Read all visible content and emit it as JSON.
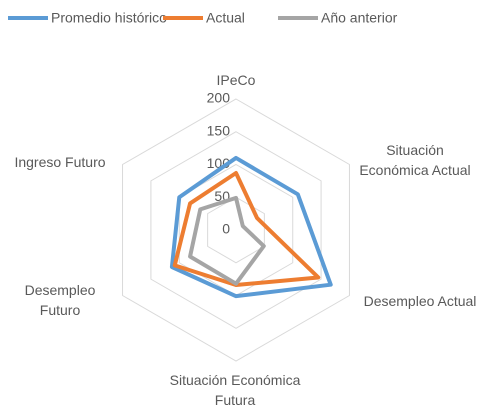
{
  "chart_data": {
    "type": "radar",
    "categories": [
      "IPeCo",
      "Situación Económica Actual",
      "Desempleo Actual",
      "Situación Económica Futura",
      "Desempleo Futuro",
      "Ingreso Futuro"
    ],
    "series": [
      {
        "name": "Promedio histórico",
        "color": "#5b9bd5",
        "values": [
          110,
          109,
          167,
          101,
          113,
          100
        ]
      },
      {
        "name": "Actual",
        "color": "#ed7d31",
        "values": [
          87,
          37,
          145,
          84,
          108,
          81
        ]
      },
      {
        "name": "Año anterior",
        "color": "#a5a5a5",
        "values": [
          49,
          12,
          49,
          82,
          81,
          63
        ]
      }
    ],
    "ylim": [
      0,
      200
    ],
    "yticks": [
      0,
      50,
      100,
      150,
      200
    ],
    "grid": true,
    "legend": "top"
  }
}
